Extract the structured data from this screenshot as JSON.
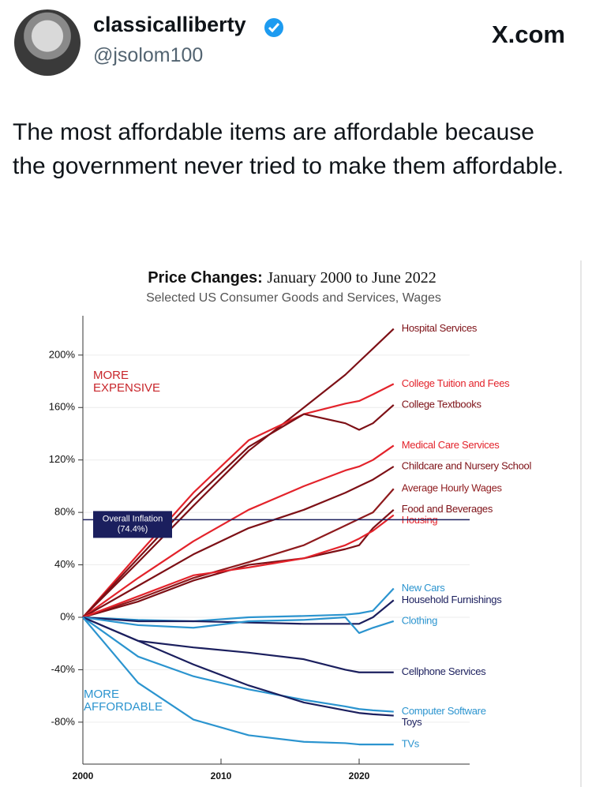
{
  "tweet": {
    "display_name": "classicalliberty",
    "handle": "@jsolom100",
    "site": "X.com",
    "text": "The most affordable items are affordable because the government never tried to make them affordable."
  },
  "chart_data": {
    "type": "line",
    "title": "Price Changes:",
    "title_period": "January 2000 to June 2022",
    "subtitle": "Selected US Consumer Goods and Services, Wages",
    "annotations": [
      "MORE EXPENSIVE",
      "MORE AFFORDABLE"
    ],
    "reference_line": {
      "value": 74.4,
      "label": "Overall Inflation",
      "value_label": "(74.4%)",
      "color": "#1b1f5e"
    },
    "x": [
      2000,
      2004,
      2008,
      2012,
      2016,
      2019,
      2020,
      2021,
      2022.5
    ],
    "xlim": [
      2000,
      2028
    ],
    "xticks": [
      2000,
      2010,
      2020
    ],
    "ylim": [
      -112,
      230
    ],
    "yticks": [
      {
        "value": -80,
        "label": "-80%"
      },
      {
        "value": -40,
        "label": "-40%"
      },
      {
        "value": 0,
        "label": "0%"
      },
      {
        "value": 40,
        "label": "40%"
      },
      {
        "value": 80,
        "label": "80%"
      },
      {
        "value": 120,
        "label": "120%"
      },
      {
        "value": 160,
        "label": "160%"
      },
      {
        "value": 200,
        "label": "200%"
      }
    ],
    "grid": true,
    "series": [
      {
        "name": "Hospital Services",
        "color": "#7d1016",
        "values": [
          0,
          42,
          85,
          127,
          160,
          185,
          195,
          205,
          220
        ]
      },
      {
        "name": "College Tuition and Fees",
        "color": "#e3232b",
        "values": [
          0,
          48,
          95,
          135,
          155,
          163,
          165,
          170,
          178
        ]
      },
      {
        "name": "College Textbooks",
        "color": "#7d1016",
        "values": [
          0,
          45,
          90,
          130,
          155,
          148,
          143,
          148,
          162
        ]
      },
      {
        "name": "Medical Care Services",
        "color": "#e3232b",
        "values": [
          0,
          30,
          58,
          82,
          100,
          112,
          115,
          120,
          131
        ]
      },
      {
        "name": "Childcare and Nursery School",
        "color": "#7d1016",
        "values": [
          0,
          24,
          48,
          68,
          82,
          95,
          100,
          105,
          115
        ]
      },
      {
        "name": "Average Hourly Wages",
        "color": "#8e1a1d",
        "values": [
          0,
          14,
          30,
          42,
          55,
          70,
          75,
          80,
          98
        ]
      },
      {
        "name": "Food and Beverages",
        "color": "#7d1016",
        "values": [
          0,
          12,
          28,
          40,
          45,
          52,
          55,
          68,
          82
        ]
      },
      {
        "name": "Housing",
        "color": "#e3232b",
        "values": [
          0,
          16,
          32,
          38,
          45,
          55,
          60,
          66,
          78
        ]
      },
      {
        "name": "New Cars",
        "color": "#2b94cf",
        "values": [
          0,
          -2,
          -3,
          0,
          1,
          2,
          3,
          5,
          22
        ]
      },
      {
        "name": "Household Furnishings",
        "color": "#1b1f5e",
        "values": [
          0,
          -3,
          -3,
          -4,
          -5,
          -5,
          -5,
          0,
          13
        ]
      },
      {
        "name": "Clothing",
        "color": "#2b94cf",
        "values": [
          0,
          -6,
          -8,
          -3,
          -2,
          0,
          -12,
          -8,
          -3
        ]
      },
      {
        "name": "Cellphone Services",
        "color": "#1b1f5e",
        "values": [
          0,
          -18,
          -23,
          -27,
          -32,
          -40,
          -42,
          -42,
          -42
        ]
      },
      {
        "name": "Computer Software",
        "color": "#2b94cf",
        "values": [
          0,
          -30,
          -45,
          -55,
          -63,
          -68,
          -70,
          -71,
          -72
        ]
      },
      {
        "name": "Toys",
        "color": "#1b1f5e",
        "values": [
          0,
          -18,
          -36,
          -52,
          -65,
          -71,
          -73,
          -74,
          -75
        ]
      },
      {
        "name": "TVs",
        "color": "#2b94cf",
        "values": [
          0,
          -50,
          -78,
          -90,
          -95,
          -96,
          -97,
          -97,
          -97
        ]
      }
    ]
  }
}
